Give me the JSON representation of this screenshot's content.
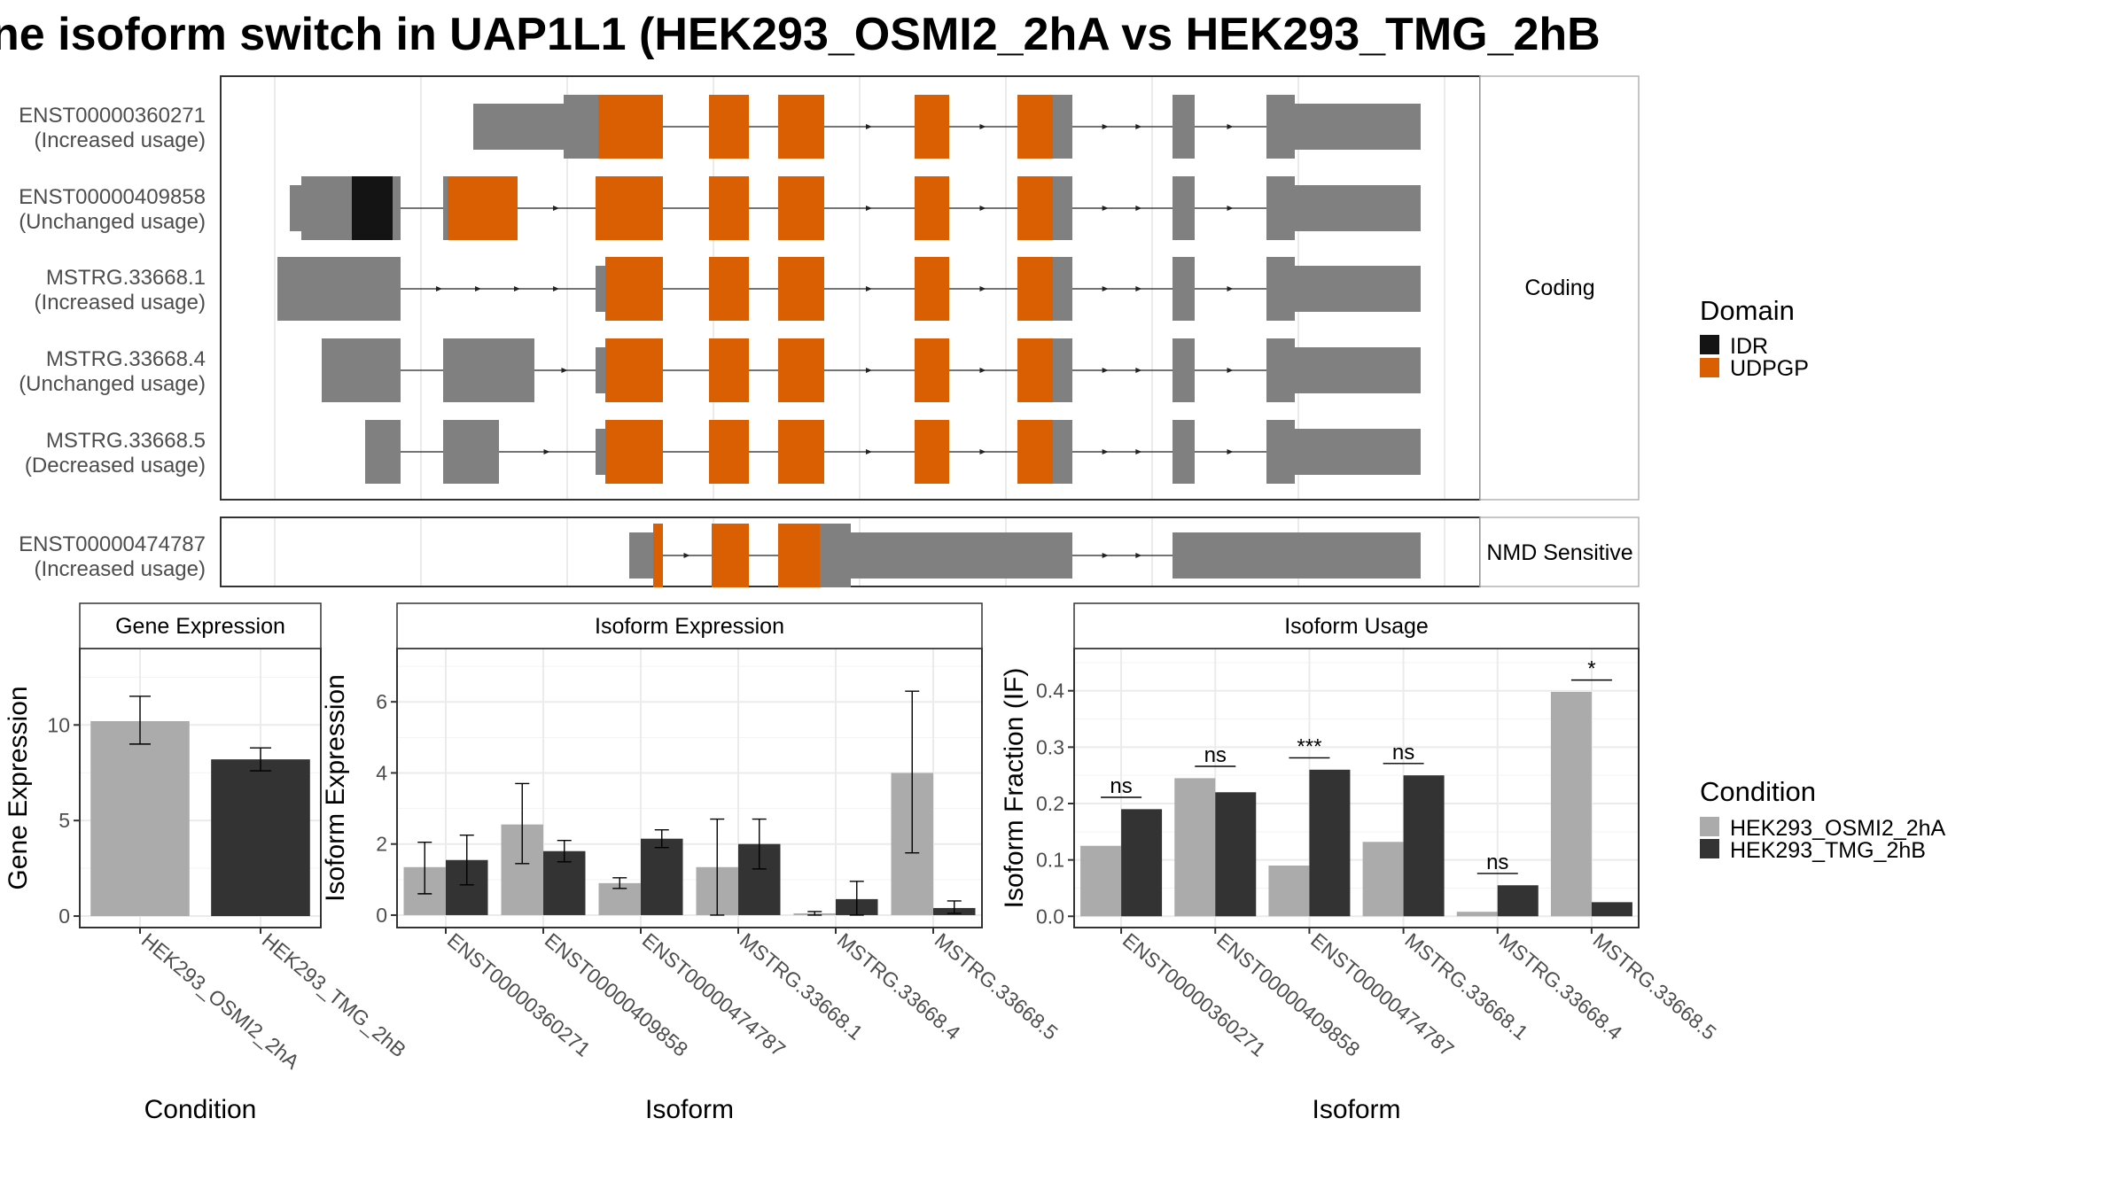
{
  "title": "ne isoform switch in UAP1L1 (HEK293_OSMI2_2hA vs HEK293_TMG_2hB",
  "colors": {
    "exon": "#808080",
    "udpgp": "#D95F02",
    "idr": "#141414",
    "cond_a": "#ABABAB",
    "cond_b": "#333333",
    "grid": "#EBEBEB",
    "line": "#222222"
  },
  "structure": {
    "coding_label": "Coding",
    "nmd_label": "NMD Sensitive",
    "domain_legend": {
      "title": "Domain",
      "items": [
        {
          "label": "IDR",
          "color": "#141414"
        },
        {
          "label": "UDPGP",
          "color": "#D95F02"
        }
      ]
    },
    "coding_tracks": [
      {
        "name": "ENST00000360271",
        "usage": "(Increased usage)"
      },
      {
        "name": "ENST00000409858",
        "usage": "(Unchanged usage)"
      },
      {
        "name": "MSTRG.33668.1",
        "usage": "(Increased usage)"
      },
      {
        "name": "MSTRG.33668.4",
        "usage": "(Unchanged usage)"
      },
      {
        "name": "MSTRG.33668.5",
        "usage": "(Decreased usage)"
      }
    ],
    "nmd_tracks": [
      {
        "name": "ENST00000474787",
        "usage": "(Increased usage)"
      }
    ]
  },
  "chart_data": [
    {
      "type": "bar",
      "panel": "Gene Expression",
      "xlabel": "Condition",
      "ylabel": "Gene Expression",
      "ylim": [
        -0.6,
        14
      ],
      "yticks": [
        0,
        5,
        10
      ],
      "categories": [
        "HEK293_OSMI2_2hA",
        "HEK293_TMG_2hB"
      ],
      "values": [
        10.2,
        8.2
      ],
      "errors": [
        [
          9.0,
          11.5
        ],
        [
          7.6,
          8.8
        ]
      ]
    },
    {
      "type": "bar",
      "panel": "Isoform Expression",
      "xlabel": "Isoform",
      "ylabel": "Isoform Expression",
      "ylim": [
        -0.35,
        7.5
      ],
      "yticks": [
        0,
        2,
        4,
        6
      ],
      "categories": [
        "ENST00000360271",
        "ENST00000409858",
        "ENST00000474787",
        "MSTRG.33668.1",
        "MSTRG.33668.4",
        "MSTRG.33668.5"
      ],
      "series": [
        {
          "name": "HEK293_OSMI2_2hA",
          "values": [
            1.35,
            2.55,
            0.9,
            1.35,
            0.05,
            4.0
          ],
          "errors": [
            [
              0.6,
              2.05
            ],
            [
              1.45,
              3.7
            ],
            [
              0.75,
              1.05
            ],
            [
              0.0,
              2.7
            ],
            [
              0.0,
              0.1
            ],
            [
              1.75,
              6.3
            ]
          ]
        },
        {
          "name": "HEK293_TMG_2hB",
          "values": [
            1.55,
            1.8,
            2.15,
            2.0,
            0.45,
            0.2
          ],
          "errors": [
            [
              0.85,
              2.25
            ],
            [
              1.5,
              2.1
            ],
            [
              1.9,
              2.4
            ],
            [
              1.3,
              2.7
            ],
            [
              0.0,
              0.95
            ],
            [
              0.05,
              0.4
            ]
          ]
        }
      ]
    },
    {
      "type": "bar",
      "panel": "Isoform Usage",
      "xlabel": "Isoform",
      "ylabel": "Isoform Fraction (IF)",
      "ylim": [
        -0.02,
        0.475
      ],
      "yticks": [
        0.0,
        0.1,
        0.2,
        0.3,
        0.4
      ],
      "ytick_labels": [
        "0.0",
        "0.1",
        "0.2",
        "0.3",
        "0.4"
      ],
      "categories": [
        "ENST00000360271",
        "ENST00000409858",
        "ENST00000474787",
        "MSTRG.33668.1",
        "MSTRG.33668.4",
        "MSTRG.33668.5"
      ],
      "series": [
        {
          "name": "HEK293_OSMI2_2hA",
          "values": [
            0.125,
            0.245,
            0.09,
            0.132,
            0.008,
            0.398
          ]
        },
        {
          "name": "HEK293_TMG_2hB",
          "values": [
            0.19,
            0.22,
            0.26,
            0.25,
            0.055,
            0.025
          ]
        }
      ],
      "significance": [
        "ns",
        "ns",
        "***",
        "ns",
        "ns",
        "*"
      ],
      "sig_y": [
        0.211,
        0.266,
        0.281,
        0.271,
        0.076,
        0.419
      ]
    }
  ],
  "condition_legend": {
    "title": "Condition",
    "items": [
      {
        "label": "HEK293_OSMI2_2hA",
        "color": "#ABABAB"
      },
      {
        "label": "HEK293_TMG_2hB",
        "color": "#333333"
      }
    ]
  }
}
